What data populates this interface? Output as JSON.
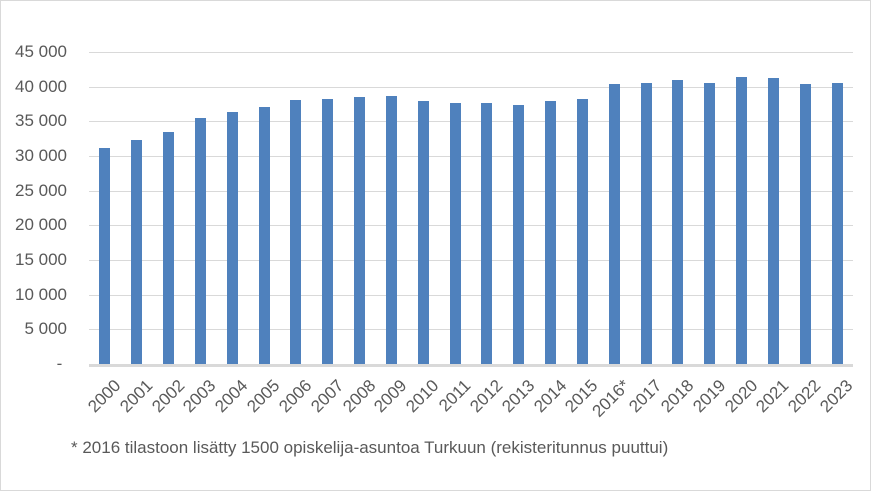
{
  "chart_data": {
    "type": "bar",
    "title": "",
    "xlabel": "",
    "ylabel": "",
    "categories": [
      "2000",
      "2001",
      "2002",
      "2003",
      "2004",
      "2005",
      "2006",
      "2007",
      "2008",
      "2009",
      "2010",
      "2011",
      "2012",
      "2013",
      "2014",
      "2015",
      "2016*",
      "2017",
      "2018",
      "2019",
      "2020",
      "2021",
      "2022",
      "2023"
    ],
    "values": [
      31100,
      32300,
      33400,
      35500,
      36300,
      37100,
      38100,
      38300,
      38500,
      38600,
      38000,
      37600,
      37600,
      37400,
      38000,
      38200,
      40400,
      40600,
      40900,
      40500,
      41400,
      41200,
      40400,
      40500
    ],
    "ylim": [
      0,
      45000
    ],
    "ytick_interval": 5000,
    "ytick_labels_top_to_bottom": [
      "45 000",
      "40 000",
      "35 000",
      "30 000",
      "25 000",
      "20 000",
      "15 000",
      "10 000",
      "5 000",
      "- "
    ],
    "grid": true,
    "legend": false,
    "colors": {
      "bar": "#4F81BD",
      "gridline": "#D9D9D9",
      "axis_line": "#D9D9D9",
      "label_text": "#595959",
      "border": "#D9D9D9",
      "background": "#FFFFFF"
    }
  },
  "footnote": "* 2016 tilastoon lisätty 1500 opiskelija-asuntoa Turkuun (rekisteritunnus puuttui)"
}
